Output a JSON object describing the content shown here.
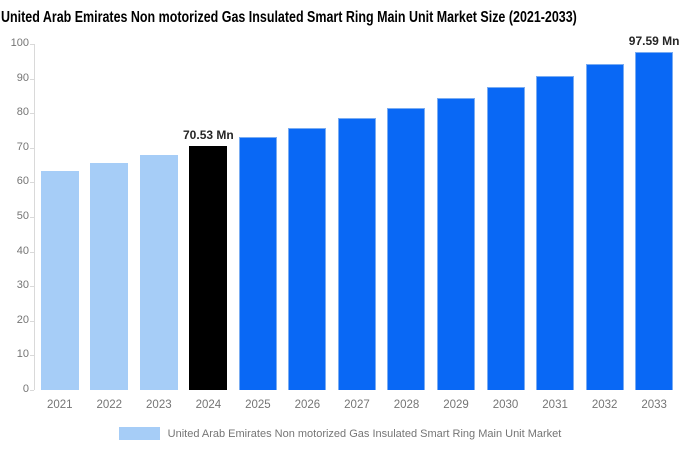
{
  "chart_data": {
    "type": "bar",
    "title": "United Arab Emirates Non motorized Gas Insulated Smart Ring Main Unit Market Size (2021-2033)",
    "categories": [
      "2021",
      "2022",
      "2023",
      "2024",
      "2025",
      "2026",
      "2027",
      "2028",
      "2029",
      "2030",
      "2031",
      "2032",
      "2033"
    ],
    "values": [
      63.29,
      65.62,
      68.03,
      70.53,
      73.13,
      75.82,
      78.61,
      81.5,
      84.5,
      87.61,
      90.83,
      94.17,
      97.59
    ],
    "unit": "Mn",
    "xlabel": "",
    "ylabel": "",
    "ylim": [
      0,
      100
    ],
    "yticks": [
      0,
      10,
      20,
      30,
      40,
      50,
      60,
      70,
      80,
      90,
      100
    ],
    "grid": false,
    "bar_styles": [
      "light",
      "light",
      "light",
      "highlight",
      "primary",
      "primary",
      "primary",
      "primary",
      "primary",
      "primary",
      "primary",
      "primary",
      "primary"
    ],
    "colors": {
      "light": "#a6cdf7",
      "primary": "#0968f5",
      "highlight": "#000000",
      "axis": "#d9d9d9",
      "tick_label": "#757575",
      "annotation": "#262626"
    },
    "annotations": [
      {
        "category": "2024",
        "text": "70.53 Mn"
      },
      {
        "category": "2033",
        "text": "97.59 Mn"
      }
    ],
    "legend": {
      "position": "bottom",
      "label": "United Arab Emirates Non motorized Gas Insulated Smart Ring Main Unit Market",
      "swatch_color": "#a6cdf7"
    }
  }
}
